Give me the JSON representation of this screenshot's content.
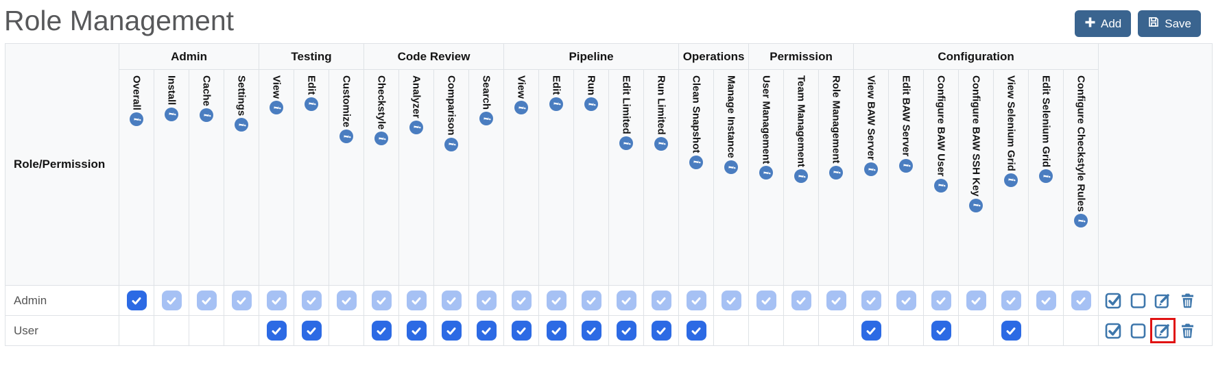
{
  "page": {
    "title": "Role Management"
  },
  "toolbar": {
    "add_label": "Add",
    "save_label": "Save",
    "add_icon": "plus-icon",
    "save_icon": "floppy-save-icon"
  },
  "table": {
    "role_header": "Role/Permission",
    "groups": [
      {
        "label": "Admin",
        "cols": 4
      },
      {
        "label": "Testing",
        "cols": 3
      },
      {
        "label": "Code Review",
        "cols": 4
      },
      {
        "label": "Pipeline",
        "cols": 5
      },
      {
        "label": "Operations",
        "cols": 2
      },
      {
        "label": "Permission",
        "cols": 3
      },
      {
        "label": "Configuration",
        "cols": 7
      }
    ],
    "columns": [
      "Overall",
      "Install",
      "Cache",
      "Settings",
      "View",
      "Edit",
      "Customize",
      "Checkstyle",
      "Analyzer",
      "Comparison",
      "Search",
      "View",
      "Edit",
      "Run",
      "Edit Limited",
      "Run Limited",
      "Clean Snapshot",
      "Manage Instance",
      "User Management",
      "Team Management",
      "Role Management",
      "View BAW Server",
      "Edit BAW Server",
      "Configure BAW User",
      "Configure BAW SSH Key",
      "View Selenium Grid",
      "Edit Selenium Grid",
      "Configure Checkstyle Rules"
    ],
    "column_info_icon": "info-icon",
    "rows": [
      {
        "role": "Admin",
        "states": [
          "checked",
          "checked-disabled",
          "checked-disabled",
          "checked-disabled",
          "checked-disabled",
          "checked-disabled",
          "checked-disabled",
          "checked-disabled",
          "checked-disabled",
          "checked-disabled",
          "checked-disabled",
          "checked-disabled",
          "checked-disabled",
          "checked-disabled",
          "checked-disabled",
          "checked-disabled",
          "checked-disabled",
          "checked-disabled",
          "checked-disabled",
          "checked-disabled",
          "checked-disabled",
          "checked-disabled",
          "checked-disabled",
          "checked-disabled",
          "checked-disabled",
          "checked-disabled",
          "checked-disabled",
          "checked-disabled"
        ],
        "highlight_edit": false
      },
      {
        "role": "User",
        "states": [
          "unchecked",
          "unchecked",
          "unchecked",
          "unchecked",
          "checked",
          "checked",
          "unchecked",
          "checked",
          "checked",
          "checked",
          "checked",
          "checked",
          "checked",
          "checked",
          "checked",
          "checked",
          "checked",
          "unchecked",
          "unchecked",
          "unchecked",
          "unchecked",
          "checked",
          "unchecked",
          "checked",
          "unchecked",
          "checked",
          "unchecked",
          "unchecked"
        ],
        "highlight_edit": true
      }
    ],
    "row_action_icons": [
      "check-all-icon",
      "uncheck-all-icon",
      "edit-icon",
      "delete-icon"
    ]
  },
  "colors": {
    "button_bg": "#3a648f",
    "checkbox_checked": "#2c6ae4",
    "checkbox_checked_disabled": "#a6c1f4",
    "action_icon_blue": "#3d76ab",
    "info_icon_blue": "#4a7dc0",
    "highlight_red": "#e01212",
    "table_border": "#dee2e6",
    "header_bg": "#f8f9fa",
    "title_gray": "#57585a"
  }
}
